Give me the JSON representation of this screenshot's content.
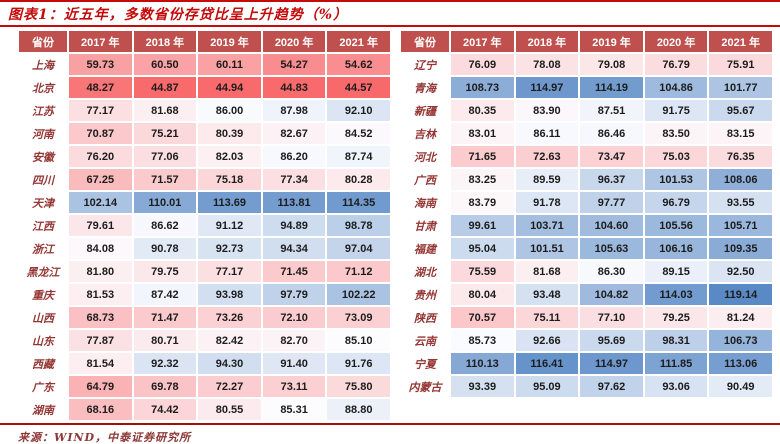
{
  "title": "图表1：近五年，多数省份存贷比呈上升趋势（%）",
  "source": "来源：WIND，中泰证券研究所",
  "colors": {
    "title_color": "#C40A0A",
    "rule_color": "#C40A0A",
    "bottom_rule_color": "#A50C0C",
    "header_bg": "#C0504D",
    "header_text": "#FFFFFF",
    "province_color": "#943634",
    "value_color": "#1C1C1C",
    "source_color": "#8C3836"
  },
  "chart_data": {
    "type": "heatmap",
    "figure_label": "图表1",
    "title": "近五年，多数省份存贷比呈上升趋势（%）",
    "value_unit": "%",
    "province_header": "省份",
    "columns": [
      "2017 年",
      "2018 年",
      "2019 年",
      "2020 年",
      "2021 年"
    ],
    "color_scale": {
      "low": "#F8696B",
      "mid": "#FCFCFF",
      "high": "#5A8AC6",
      "mapping": "3-color scale: minimum=red, median=white, maximum=blue"
    },
    "tables": [
      {
        "rows": [
          {
            "province": "上海",
            "values": [
              59.73,
              60.5,
              60.11,
              54.27,
              54.62
            ]
          },
          {
            "province": "北京",
            "values": [
              48.27,
              44.87,
              44.94,
              44.83,
              44.57
            ]
          },
          {
            "province": "江苏",
            "values": [
              77.17,
              81.68,
              86.0,
              87.98,
              92.1
            ]
          },
          {
            "province": "河南",
            "values": [
              70.87,
              75.21,
              80.39,
              82.67,
              84.52
            ]
          },
          {
            "province": "安徽",
            "values": [
              76.2,
              77.06,
              82.03,
              86.2,
              87.74
            ]
          },
          {
            "province": "四川",
            "values": [
              67.25,
              71.57,
              75.18,
              77.34,
              80.28
            ]
          },
          {
            "province": "天津",
            "values": [
              102.14,
              110.01,
              113.69,
              113.81,
              114.35
            ]
          },
          {
            "province": "江西",
            "values": [
              79.61,
              86.62,
              91.12,
              94.89,
              98.78
            ]
          },
          {
            "province": "浙江",
            "values": [
              84.08,
              90.78,
              92.73,
              94.34,
              97.04
            ]
          },
          {
            "province": "黑龙江",
            "values": [
              81.8,
              79.75,
              77.17,
              71.45,
              71.12
            ]
          },
          {
            "province": "重庆",
            "values": [
              81.53,
              87.42,
              93.98,
              97.79,
              102.22
            ]
          },
          {
            "province": "山西",
            "values": [
              68.73,
              71.47,
              73.26,
              72.1,
              73.09
            ]
          },
          {
            "province": "山东",
            "values": [
              77.87,
              80.71,
              82.42,
              82.7,
              85.1
            ]
          },
          {
            "province": "西藏",
            "values": [
              81.54,
              92.32,
              94.3,
              91.4,
              91.76
            ]
          },
          {
            "province": "广东",
            "values": [
              64.79,
              69.78,
              72.27,
              73.11,
              75.8
            ]
          },
          {
            "province": "湖南",
            "values": [
              68.16,
              74.42,
              80.55,
              85.31,
              88.8
            ]
          }
        ]
      },
      {
        "rows": [
          {
            "province": "辽宁",
            "values": [
              76.09,
              78.08,
              79.08,
              76.79,
              75.91
            ]
          },
          {
            "province": "青海",
            "values": [
              108.73,
              114.97,
              114.19,
              104.86,
              101.77
            ]
          },
          {
            "province": "新疆",
            "values": [
              80.35,
              83.9,
              87.51,
              91.75,
              95.67
            ]
          },
          {
            "province": "吉林",
            "values": [
              83.01,
              86.11,
              86.46,
              83.5,
              83.15
            ]
          },
          {
            "province": "河北",
            "values": [
              71.65,
              72.63,
              73.47,
              75.03,
              76.35
            ]
          },
          {
            "province": "广西",
            "values": [
              83.25,
              89.59,
              96.37,
              101.53,
              108.06
            ]
          },
          {
            "province": "海南",
            "values": [
              83.79,
              91.78,
              97.77,
              96.79,
              93.55
            ]
          },
          {
            "province": "甘肃",
            "values": [
              99.61,
              103.71,
              104.6,
              105.56,
              105.71
            ]
          },
          {
            "province": "福建",
            "values": [
              95.04,
              101.51,
              105.63,
              106.16,
              109.35
            ]
          },
          {
            "province": "湖北",
            "values": [
              75.59,
              81.68,
              86.3,
              89.15,
              92.5
            ]
          },
          {
            "province": "贵州",
            "values": [
              80.04,
              93.48,
              104.82,
              114.03,
              119.14
            ]
          },
          {
            "province": "陕西",
            "values": [
              70.57,
              75.11,
              77.1,
              79.25,
              81.24
            ]
          },
          {
            "province": "云南",
            "values": [
              85.73,
              92.66,
              95.69,
              98.31,
              106.73
            ]
          },
          {
            "province": "宁夏",
            "values": [
              110.13,
              116.41,
              114.97,
              111.85,
              113.06
            ]
          },
          {
            "province": "内蒙古",
            "values": [
              93.39,
              95.09,
              97.62,
              93.06,
              90.49
            ]
          }
        ]
      }
    ]
  }
}
